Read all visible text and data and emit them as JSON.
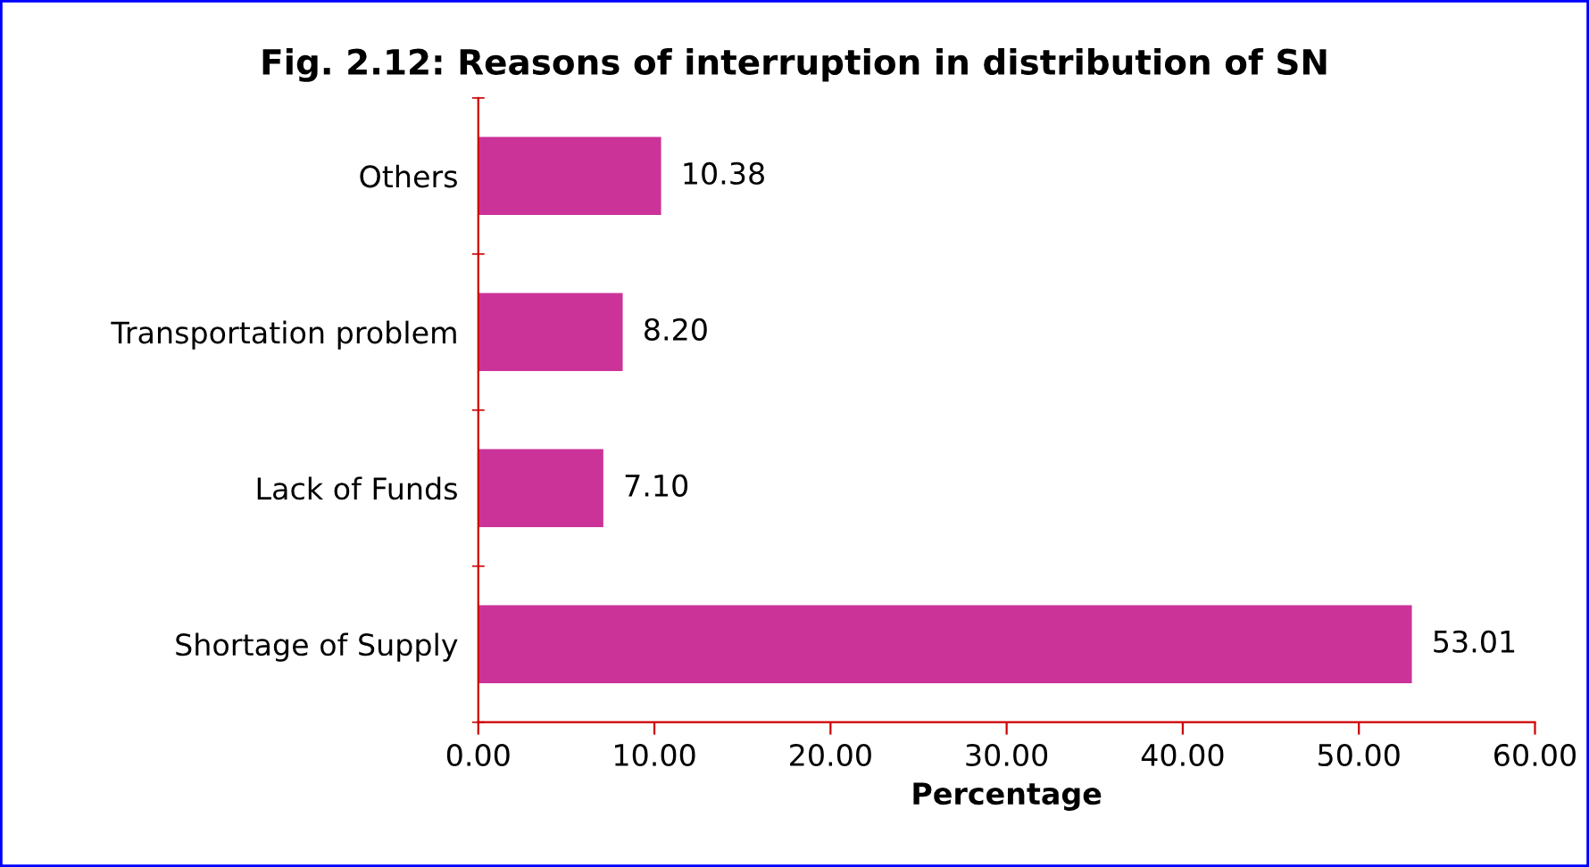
{
  "chart_data": {
    "type": "bar",
    "orientation": "horizontal",
    "title": "Fig. 2.12: Reasons of interruption in distribution of SN",
    "xlabel": "Percentage",
    "categories": [
      "Others",
      "Transportation problem",
      "Lack of Funds",
      "Shortage of Supply"
    ],
    "values": [
      10.38,
      8.2,
      7.1,
      53.01
    ],
    "value_labels": [
      "10.38",
      "8.20",
      "7.10",
      "53.01"
    ],
    "color": "#cc3399",
    "xlim": [
      0,
      60
    ],
    "xticks": [
      {
        "value": 0,
        "label": "0.00"
      },
      {
        "value": 10,
        "label": "10.00"
      },
      {
        "value": 20,
        "label": "20.00"
      },
      {
        "value": 30,
        "label": "30.00"
      },
      {
        "value": 40,
        "label": "40.00"
      },
      {
        "value": 50,
        "label": "50.00"
      },
      {
        "value": 60,
        "label": "60.00"
      }
    ],
    "grid": false,
    "legend": false
  }
}
